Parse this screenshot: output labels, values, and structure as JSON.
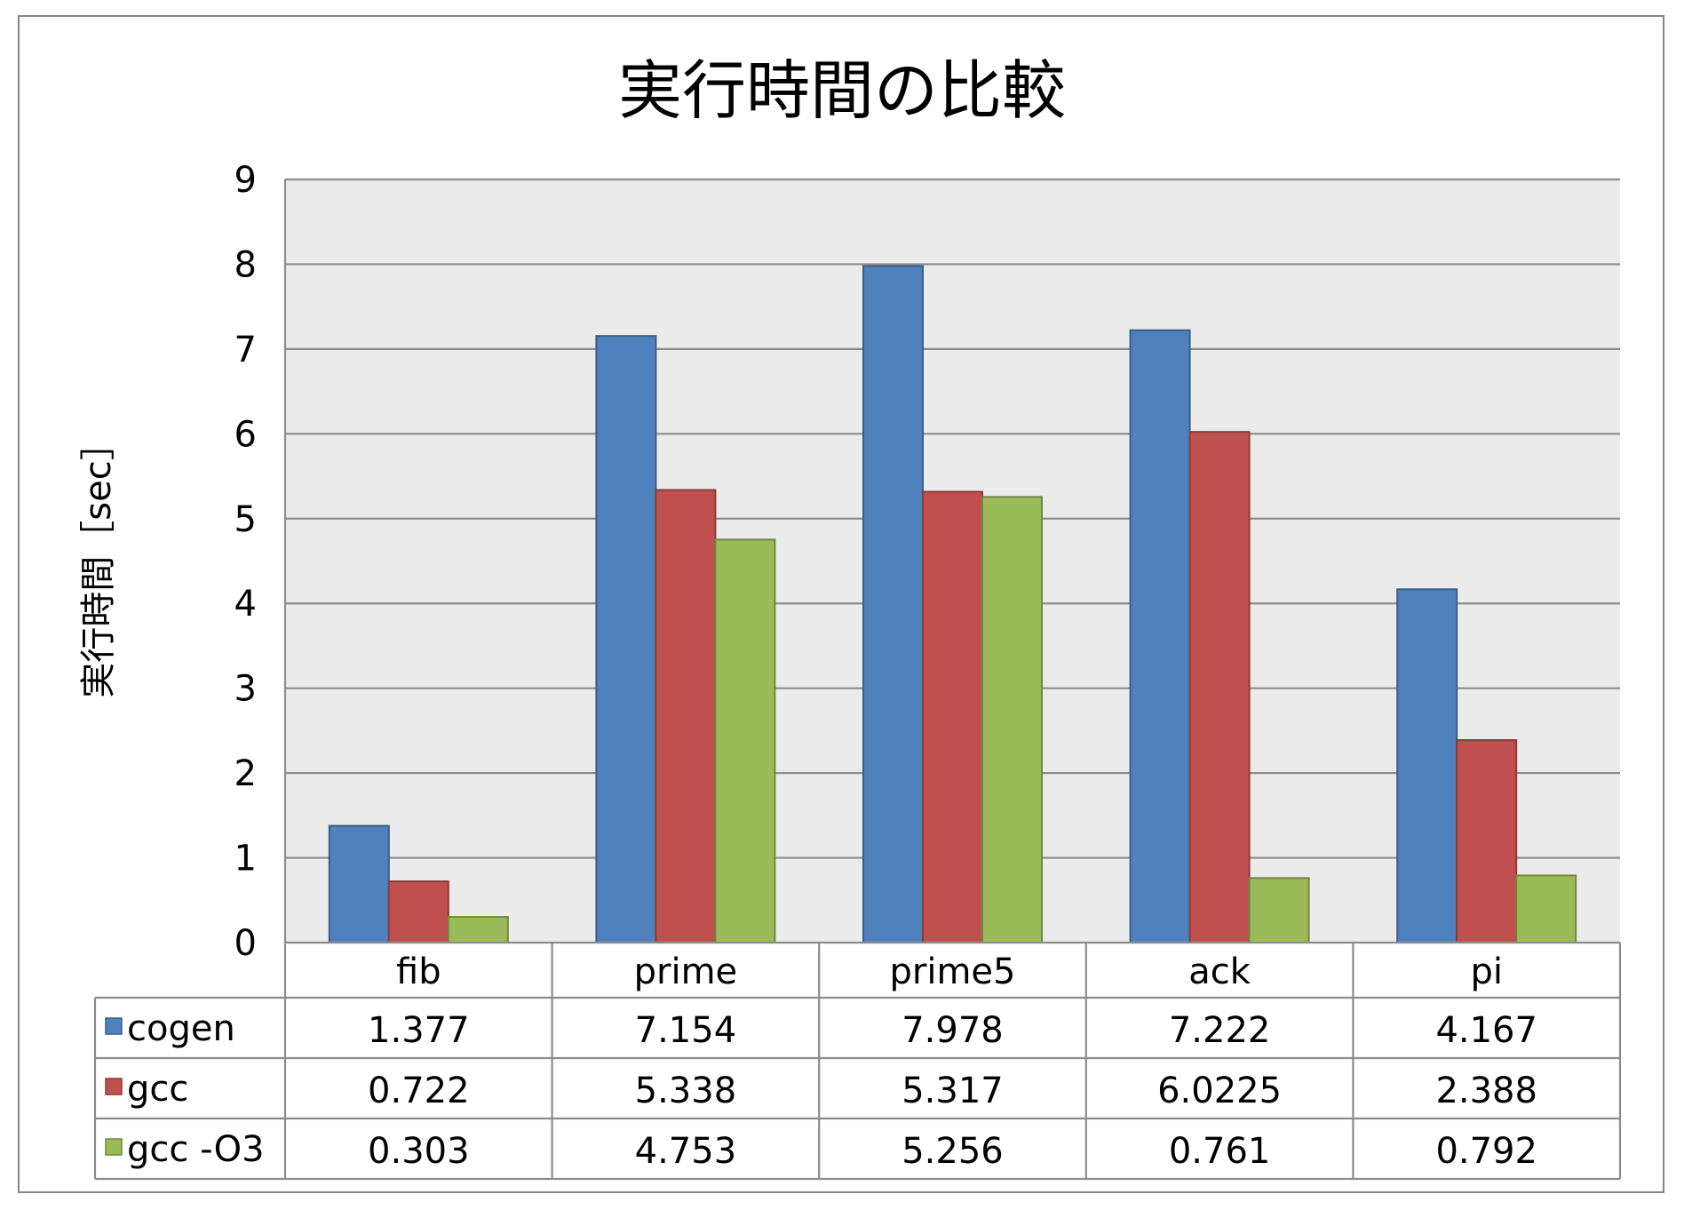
{
  "chart_data": {
    "type": "bar",
    "title": "実行時間の比較",
    "xlabel": "",
    "ylabel": "実行時間［sec］",
    "ylim": [
      0,
      9
    ],
    "yticks": [
      0,
      1,
      2,
      3,
      4,
      5,
      6,
      7,
      8,
      9
    ],
    "grid": true,
    "legend": "left, inside data table",
    "categories": [
      "fib",
      "prime",
      "prime5",
      "ack",
      "pi"
    ],
    "series": [
      {
        "name": "cogen",
        "color": "#4f81bd",
        "values": [
          1.377,
          7.154,
          7.978,
          7.222,
          4.167
        ],
        "labels": [
          "1.377",
          "7.154",
          "7.978",
          "7.222",
          "4.167"
        ]
      },
      {
        "name": "gcc",
        "color": "#c0504d",
        "values": [
          0.722,
          5.338,
          5.317,
          6.0225,
          2.388
        ],
        "labels": [
          "0.722",
          "5.338",
          "5.317",
          "6.0225",
          "2.388"
        ]
      },
      {
        "name": "gcc  -O3",
        "color": "#9bbb59",
        "values": [
          0.303,
          4.753,
          5.256,
          0.761,
          0.792
        ],
        "labels": [
          "0.303",
          "4.753",
          "5.256",
          "0.761",
          "0.792"
        ]
      }
    ]
  }
}
